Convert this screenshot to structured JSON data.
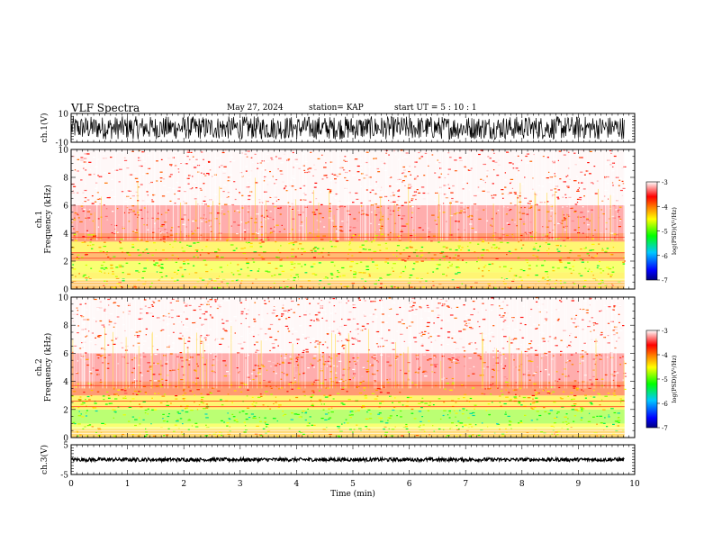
{
  "header": {
    "title": "VLF Spectra",
    "date": "May 27, 2024",
    "station": "station= KAP",
    "start": "start  UT  =   5  : 10 : 1"
  },
  "colors": {
    "frame": "#000000",
    "spectrogram_background": "#ffffff",
    "colorbar": [
      "#000080",
      "#0000ff",
      "#00c8ff",
      "#00ff00",
      "#ffff00",
      "#ff8000",
      "#ff0000",
      "#ffffff"
    ]
  },
  "chart_data": [
    {
      "id": "ch1-waveform",
      "type": "line",
      "ylabel": "ch.1(V)",
      "ylim": [
        -10,
        10
      ],
      "yticks": [
        "10",
        "-10"
      ],
      "xlim": [
        0,
        10
      ],
      "trace_color": "#000000",
      "trace_range": [
        -8,
        8
      ],
      "data_until": 9.82
    },
    {
      "id": "ch1-spectrogram",
      "type": "heatmap",
      "ylabel": "ch.1\nFrequency (kHz)",
      "ylim": [
        0,
        10
      ],
      "yticks": [
        "0",
        "2",
        "4",
        "6",
        "8",
        "10"
      ],
      "xlim": [
        0,
        10
      ],
      "data_until": 9.82,
      "colorbar": {
        "label": "log(PSD)(V²/Hz)",
        "range": [
          -7,
          -3
        ],
        "ticks": [
          "-3",
          "-4",
          "-5",
          "-6",
          "-7"
        ]
      },
      "bands_khz": [
        {
          "from": 0.0,
          "to": 0.6,
          "level": -4.4
        },
        {
          "from": 0.6,
          "to": 1.2,
          "level": -4.7
        },
        {
          "from": 1.2,
          "to": 2.0,
          "level": -4.8
        },
        {
          "from": 2.0,
          "to": 2.6,
          "level": -4.3
        },
        {
          "from": 2.6,
          "to": 3.4,
          "level": -4.7
        },
        {
          "from": 3.4,
          "to": 4.0,
          "level": -4.1
        },
        {
          "from": 4.0,
          "to": 6.0,
          "level": -3.6
        },
        {
          "from": 6.0,
          "to": 10.0,
          "level": -3.3
        }
      ]
    },
    {
      "id": "ch2-spectrogram",
      "type": "heatmap",
      "ylabel": "ch.2\nFrequency (kHz)",
      "ylim": [
        0,
        10
      ],
      "yticks": [
        "0",
        "2",
        "4",
        "6",
        "8",
        "10"
      ],
      "xlim": [
        0,
        10
      ],
      "data_until": 9.82,
      "colorbar": {
        "label": "log(PSD)(V²/Hz)",
        "range": [
          -7,
          -3
        ],
        "ticks": [
          "-3",
          "-4",
          "-5",
          "-6",
          "-7"
        ]
      },
      "bands_khz": [
        {
          "from": 0.0,
          "to": 0.6,
          "level": -4.5
        },
        {
          "from": 0.6,
          "to": 1.0,
          "level": -4.8
        },
        {
          "from": 1.0,
          "to": 2.0,
          "level": -5.1
        },
        {
          "from": 2.0,
          "to": 3.0,
          "level": -4.7
        },
        {
          "from": 3.0,
          "to": 4.0,
          "level": -4.1
        },
        {
          "from": 4.0,
          "to": 6.0,
          "level": -3.6
        },
        {
          "from": 6.0,
          "to": 10.0,
          "level": -3.3
        }
      ]
    },
    {
      "id": "ch3-waveform",
      "type": "line",
      "ylabel": "ch.3(V)",
      "ylim": [
        -5,
        5
      ],
      "yticks": [
        "5",
        "-5"
      ],
      "xlim": [
        0,
        10
      ],
      "xticks": [
        "0",
        "1",
        "2",
        "3",
        "4",
        "5",
        "6",
        "7",
        "8",
        "9",
        "10"
      ],
      "xlabel": "Time (min)",
      "trace_color": "#000000",
      "trace_range": [
        -0.6,
        0.6
      ],
      "data_until": 9.82
    }
  ]
}
